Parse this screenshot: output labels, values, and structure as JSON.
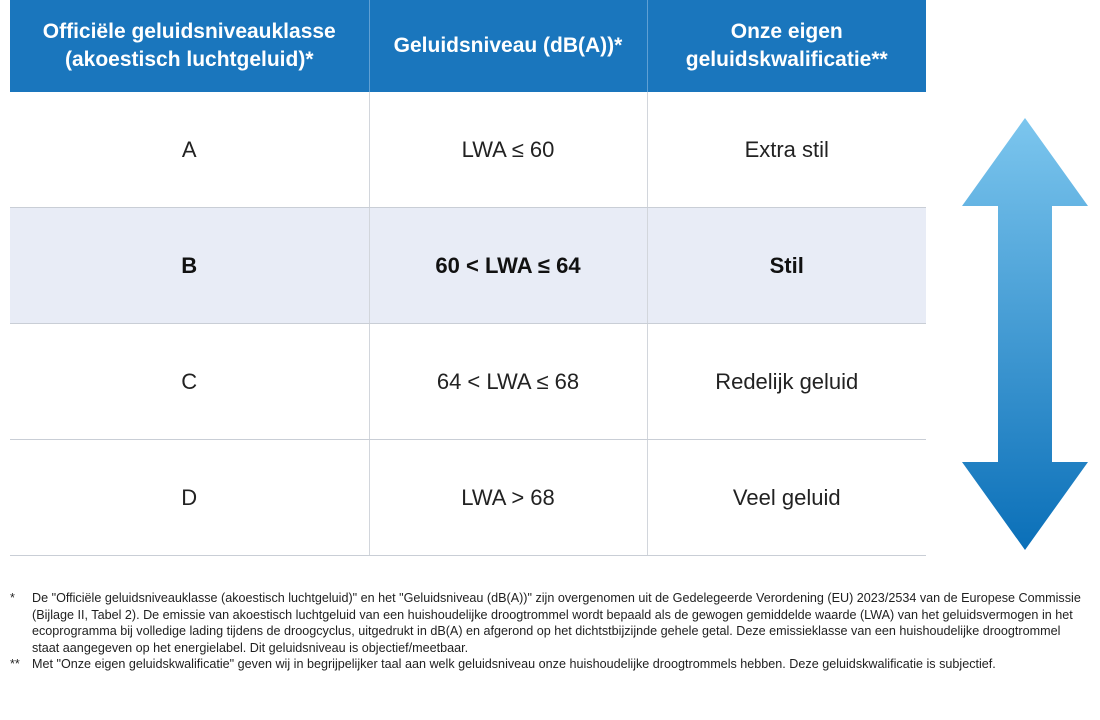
{
  "table": {
    "headers": [
      "Officiële geluidsniveauklasse (akoestisch luchtgeluid)*",
      "Geluidsniveau (dB(A))*",
      "Onze eigen geluidskwalificatie**"
    ],
    "rows": [
      {
        "klasse": "A",
        "niveau": "LWA ≤ 60",
        "kwalificatie": "Extra stil",
        "highlighted": false
      },
      {
        "klasse": "B",
        "niveau": "60 < LWA ≤ 64",
        "kwalificatie": "Stil",
        "highlighted": true
      },
      {
        "klasse": "C",
        "niveau": "64 < LWA ≤ 68",
        "kwalificatie": "Redelijk geluid",
        "highlighted": false
      },
      {
        "klasse": "D",
        "niveau": "LWA > 68",
        "kwalificatie": "Veel geluid",
        "highlighted": false
      }
    ]
  },
  "arrow": {
    "icon": "double-arrow-vertical-icon",
    "color_top": "#7cc6ee",
    "color_bottom": "#0a6fb8"
  },
  "colors": {
    "header_bg": "#1a76bd",
    "highlight_row_bg": "#e8ecf6"
  },
  "footnotes": [
    {
      "mark": "*",
      "text": "De \"Officiële geluidsniveauklasse (akoestisch luchtgeluid)\" en het \"Geluidsniveau (dB(A))\" zijn overgenomen uit de Gedelegeerde Verordening (EU) 2023/2534 van de Europese Commissie (Bijlage II, Tabel 2). De emissie van akoestisch luchtgeluid van een huishoudelijke droogtrommel wordt bepaald als de gewogen gemiddelde waarde (LWA) van het geluidsvermogen in het ecoprogramma bij volledige lading tijdens de droogcyclus, uitgedrukt in dB(A) en afgerond op het dichtstbijzijnde gehele getal. Deze emissieklasse van een huishoudelijke droogtrommel staat aangegeven op het energielabel. Dit geluidsniveau is objectief/meetbaar."
    },
    {
      "mark": "**",
      "text": "Met \"Onze eigen geluidskwalificatie\" geven wij in begrijpelijker taal aan welk geluidsniveau onze huishoudelijke droogtrommels hebben. Deze geluidskwalificatie is subjectief."
    }
  ]
}
